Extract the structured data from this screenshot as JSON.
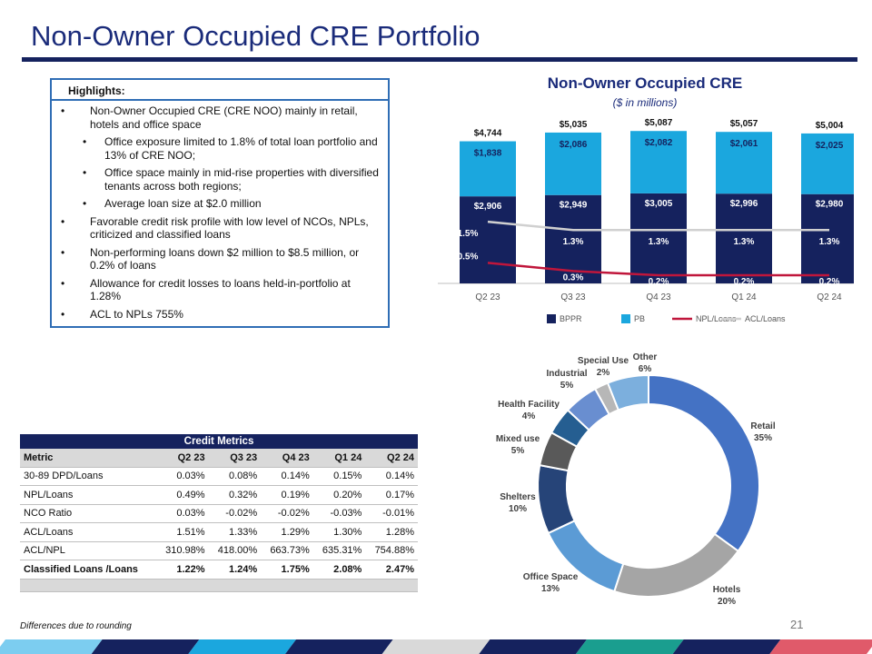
{
  "page": {
    "title": "Non-Owner Occupied CRE Portfolio",
    "footnote": "Differences due to rounding",
    "page_number": "21"
  },
  "highlights": {
    "heading": "Highlights:",
    "items": [
      {
        "text": "Non-Owner Occupied CRE (CRE NOO) mainly in retail, hotels and office space",
        "level": 1
      },
      {
        "text": "Office exposure limited to 1.8% of total loan portfolio and 13% of CRE NOO;",
        "level": 2
      },
      {
        "text": "Office space mainly in mid-rise properties with diversified tenants across both regions;",
        "level": 2
      },
      {
        "text": "Average loan size at $2.0 million",
        "level": 2
      },
      {
        "text": "Favorable credit risk profile with low level of NCOs, NPLs, criticized and classified loans",
        "level": 1
      },
      {
        "text": "Non-performing loans down $2 million to $8.5 million, or 0.2% of loans",
        "level": 1
      },
      {
        "text": "Allowance for credit losses to loans held-in-portfolio at 1.28%",
        "level": 1
      },
      {
        "text": "ACL to NPLs 755%",
        "level": 1
      }
    ]
  },
  "credit_metrics": {
    "title": "Credit Metrics",
    "columns": [
      "Metric",
      "Q2 23",
      "Q3 23",
      "Q4 23",
      "Q1 24",
      "Q2 24"
    ],
    "rows": [
      {
        "cells": [
          "30-89 DPD/Loans",
          "0.03%",
          "0.08%",
          "0.14%",
          "0.15%",
          "0.14%"
        ],
        "bold": false
      },
      {
        "cells": [
          "NPL/Loans",
          "0.49%",
          "0.32%",
          "0.19%",
          "0.20%",
          "0.17%"
        ],
        "bold": false
      },
      {
        "cells": [
          "NCO Ratio",
          "0.03%",
          "-0.02%",
          "-0.02%",
          "-0.03%",
          "-0.01%"
        ],
        "bold": false
      },
      {
        "cells": [
          "ACL/Loans",
          "1.51%",
          "1.33%",
          "1.29%",
          "1.30%",
          "1.28%"
        ],
        "bold": false
      },
      {
        "cells": [
          "ACL/NPL",
          "310.98%",
          "418.00%",
          "663.73%",
          "635.31%",
          "754.88%"
        ],
        "bold": false
      },
      {
        "cells": [
          "Classified Loans /Loans",
          "1.22%",
          "1.24%",
          "1.75%",
          "2.08%",
          "2.47%"
        ],
        "bold": true
      }
    ]
  },
  "chart_data": [
    {
      "type": "bar",
      "stacked": true,
      "title": "Non-Owner Occupied CRE",
      "subtitle": "($ in millions)",
      "categories": [
        "Q2 23",
        "Q3 23",
        "Q4 23",
        "Q1 24",
        "Q2 24"
      ],
      "series": [
        {
          "name": "BPPR",
          "values": [
            2906,
            2949,
            3005,
            2996,
            2980
          ],
          "labels": [
            "$2,906",
            "$2,949",
            "$3,005",
            "$2,996",
            "$2,980"
          ],
          "color": "#15225e"
        },
        {
          "name": "PB",
          "values": [
            1838,
            2086,
            2082,
            2061,
            2025
          ],
          "labels": [
            "$1,838",
            "$2,086",
            "$2,082",
            "$2,061",
            "$2,025"
          ],
          "color": "#1ba7de"
        }
      ],
      "totals": [
        "$4,744",
        "$5,035",
        "$5,087",
        "$5,057",
        "$5,004"
      ],
      "lines": [
        {
          "name": "NPL/Loans",
          "values": [
            0.5,
            0.3,
            0.2,
            0.2,
            0.2
          ],
          "labels": [
            "0.5%",
            "0.3%",
            "0.2%",
            "0.2%",
            "0.2%"
          ],
          "color": "#c0163b"
        },
        {
          "name": "ACL/Loans",
          "values": [
            1.5,
            1.3,
            1.3,
            1.3,
            1.3
          ],
          "labels": [
            "1.5%",
            "1.3%",
            "1.3%",
            "1.3%",
            "1.3%"
          ],
          "color": "#d0d0d0"
        }
      ],
      "legend": [
        "BPPR",
        "PB",
        "NPL/Loans",
        "ACL/Loans"
      ],
      "legend_position": "bottom"
    },
    {
      "type": "pie",
      "donut": true,
      "slices": [
        {
          "label": "Retail",
          "pct": "35%",
          "value": 35,
          "color": "#4472c4"
        },
        {
          "label": "Hotels",
          "pct": "20%",
          "value": 20,
          "color": "#a5a5a5"
        },
        {
          "label": "Office Space",
          "pct": "13%",
          "value": 13,
          "color": "#5b9bd5"
        },
        {
          "label": "Shelters",
          "pct": "10%",
          "value": 10,
          "color": "#264478"
        },
        {
          "label": "Mixed use",
          "pct": "5%",
          "value": 5,
          "color": "#595959"
        },
        {
          "label": "Health Facility",
          "pct": "4%",
          "value": 4,
          "color": "#255e91"
        },
        {
          "label": "Industrial",
          "pct": "5%",
          "value": 5,
          "color": "#698ed0"
        },
        {
          "label": "Special Use",
          "pct": "2%",
          "value": 2,
          "color": "#b7b7b7"
        },
        {
          "label": "Other",
          "pct": "6%",
          "value": 6,
          "color": "#7cafdd"
        }
      ]
    }
  ],
  "footer_colors": [
    "#7ccdf0",
    "#15225e",
    "#1ba7de",
    "#15225e",
    "#d9d9d9",
    "#15225e",
    "#1a9e8f",
    "#15225e",
    "#e05a6a"
  ]
}
